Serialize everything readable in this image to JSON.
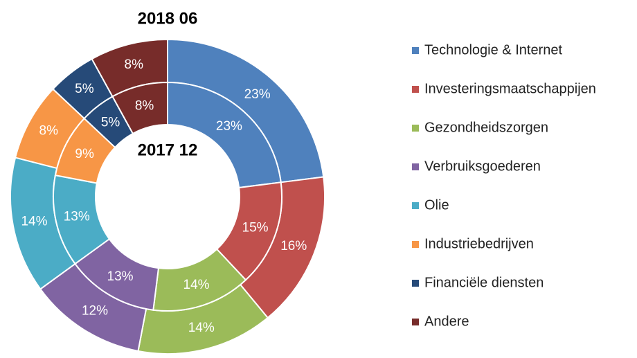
{
  "chart_data": {
    "type": "donut",
    "categories": [
      "Technologie & Internet",
      "Investeringsmaatschappijen",
      "Gezondheidszorgen",
      "Verbruiksgoederen",
      "Olie",
      "Industriebedrijven",
      "Financiële diensten",
      "Andere"
    ],
    "colors": [
      "#4f81bd",
      "#c0504d",
      "#9bbb59",
      "#8064a2",
      "#4bacc6",
      "#f79646",
      "#264a78",
      "#772c2a"
    ],
    "series": [
      {
        "name": "2018 06",
        "values": [
          23,
          16,
          14,
          12,
          14,
          8,
          5,
          8
        ],
        "value_labels": [
          "23%",
          "16%",
          "14%",
          "12%",
          "14%",
          "8%",
          "5%",
          "8%"
        ]
      },
      {
        "name": "2017 12",
        "values": [
          23,
          15,
          14,
          13,
          13,
          9,
          5,
          8
        ],
        "value_labels": [
          "23%",
          "15%",
          "14%",
          "13%",
          "13%",
          "9%",
          "5%",
          "8%"
        ]
      }
    ]
  }
}
